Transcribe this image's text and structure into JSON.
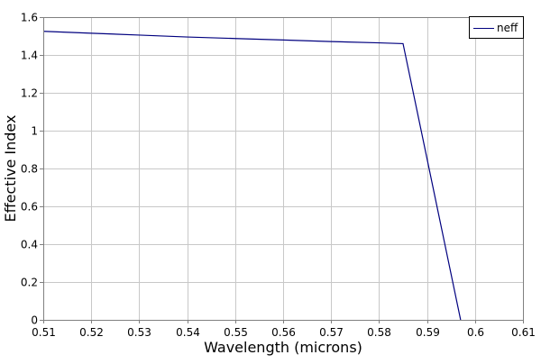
{
  "chart_data": {
    "type": "line",
    "title": "",
    "xlabel": "Wavelength (microns)",
    "ylabel": "Effective Index",
    "xlim": [
      0.51,
      0.61
    ],
    "ylim": [
      0,
      1.6
    ],
    "x_ticks": [
      0.51,
      0.52,
      0.53,
      0.54,
      0.55,
      0.56,
      0.57,
      0.58,
      0.59,
      0.6,
      0.61
    ],
    "x_tick_labels": [
      "0.51",
      "0.52",
      "0.53",
      "0.54",
      "0.55",
      "0.56",
      "0.57",
      "0.58",
      "0.59",
      "0.6",
      "0.61"
    ],
    "y_ticks": [
      0,
      0.2,
      0.4,
      0.6,
      0.8,
      1.0,
      1.2,
      1.4,
      1.6
    ],
    "y_tick_labels": [
      "0",
      "0.2",
      "0.4",
      "0.6",
      "0.8",
      "1",
      "1.2",
      "1.4",
      "1.6"
    ],
    "grid": true,
    "legend_position": "top-right",
    "series": [
      {
        "name": "neff",
        "color": "#00007f",
        "points": [
          {
            "x": 0.51,
            "y": 1.525
          },
          {
            "x": 0.52,
            "y": 1.515
          },
          {
            "x": 0.53,
            "y": 1.505
          },
          {
            "x": 0.54,
            "y": 1.495
          },
          {
            "x": 0.55,
            "y": 1.487
          },
          {
            "x": 0.56,
            "y": 1.479
          },
          {
            "x": 0.57,
            "y": 1.471
          },
          {
            "x": 0.58,
            "y": 1.464
          },
          {
            "x": 0.585,
            "y": 1.46
          },
          {
            "x": 0.597,
            "y": 0
          }
        ]
      }
    ]
  }
}
